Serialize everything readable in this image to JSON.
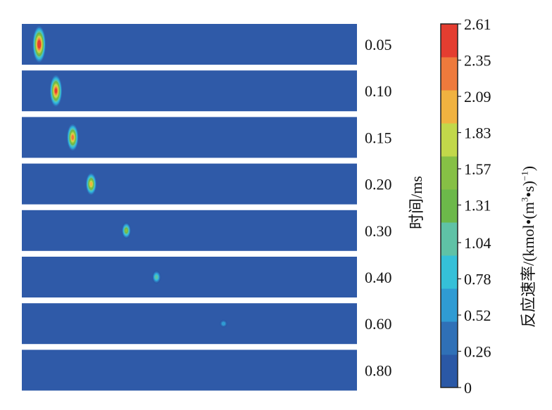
{
  "chart_data": {
    "type": "heatmap",
    "time_axis_label": "时间/ms",
    "colorbar_label": "反应速率/(kmol·(m³·s)⁻¹)",
    "colorbar_label_parts": {
      "main": "反应速率/(kmol",
      "dot1": "•",
      "paren_open": "(m",
      "sup3": "3",
      "dot2": "•",
      "s": "s)",
      "sup_neg1": "−1",
      "close": ")"
    },
    "colorbar_ticks": [
      "0",
      "0.26",
      "0.52",
      "0.78",
      "1.04",
      "1.31",
      "1.57",
      "1.83",
      "2.09",
      "2.35",
      "2.61"
    ],
    "colorbar_range": [
      0,
      2.61
    ],
    "colorbar_colors": [
      "#2a58a6",
      "#2f70b7",
      "#2f9bd3",
      "#35c0d8",
      "#5fc2a6",
      "#6cb84a",
      "#86c045",
      "#c2d84a",
      "#f0b240",
      "#ee7a3c",
      "#e43d30"
    ],
    "background_color": "#2f5aa8",
    "panels": [
      {
        "time": "0.05",
        "flame_x_fraction": 0.035,
        "peak_rate": 2.61,
        "flame_height": 1.0
      },
      {
        "time": "0.10",
        "flame_x_fraction": 0.085,
        "peak_rate": 2.45,
        "flame_height": 0.85
      },
      {
        "time": "0.15",
        "flame_x_fraction": 0.135,
        "peak_rate": 2.2,
        "flame_height": 0.7
      },
      {
        "time": "0.20",
        "flame_x_fraction": 0.19,
        "peak_rate": 1.9,
        "flame_height": 0.55
      },
      {
        "time": "0.30",
        "flame_x_fraction": 0.295,
        "peak_rate": 1.45,
        "flame_height": 0.4
      },
      {
        "time": "0.40",
        "flame_x_fraction": 0.385,
        "peak_rate": 1.05,
        "flame_height": 0.3
      },
      {
        "time": "0.60",
        "flame_x_fraction": 0.585,
        "peak_rate": 0.55,
        "flame_height": 0.12
      },
      {
        "time": "0.80",
        "flame_x_fraction": null,
        "peak_rate": 0,
        "flame_height": 0
      }
    ]
  }
}
